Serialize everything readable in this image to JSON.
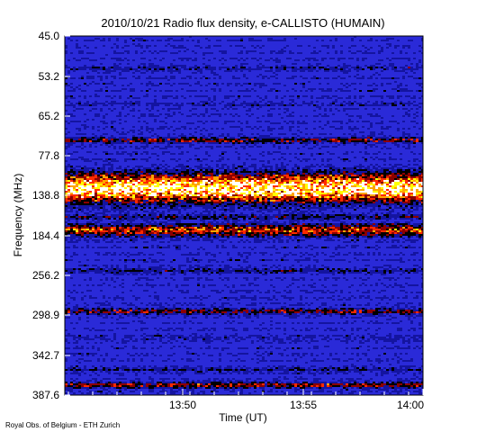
{
  "chart_data": {
    "type": "heatmap",
    "title": "2010/10/21  Radio flux density, e-CALLISTO (HUMAIN)",
    "xlabel": "Time (UT)",
    "ylabel": "Frequency (MHz)",
    "x_ticks": [
      "13:50",
      "13:55",
      "14:00"
    ],
    "x_range": [
      "13:45:45",
      "14:00"
    ],
    "y_ticks": [
      "45.0",
      "53.2",
      "65.2",
      "77.8",
      "138.8",
      "184.4",
      "256.2",
      "298.9",
      "342.7",
      "387.6"
    ],
    "y_range": [
      45.0,
      387.6
    ],
    "y_axis": "inverted, non-linear channel index",
    "colormap": [
      "#0000ff",
      "#000000",
      "#ff0000",
      "#ffff00",
      "#ffffff"
    ],
    "background_color": "#2a2ad8",
    "intense_bands": [
      {
        "label": "138.8",
        "intensity": "very high"
      },
      {
        "label": "184.4",
        "intensity": "high"
      },
      {
        "label": "77.8",
        "intensity": "medium"
      },
      {
        "label": "298.9",
        "intensity": "medium"
      },
      {
        "label": "387.6",
        "intensity": "medium"
      }
    ]
  },
  "footer": "Royal Obs. of Belgium - ETH Zurich"
}
